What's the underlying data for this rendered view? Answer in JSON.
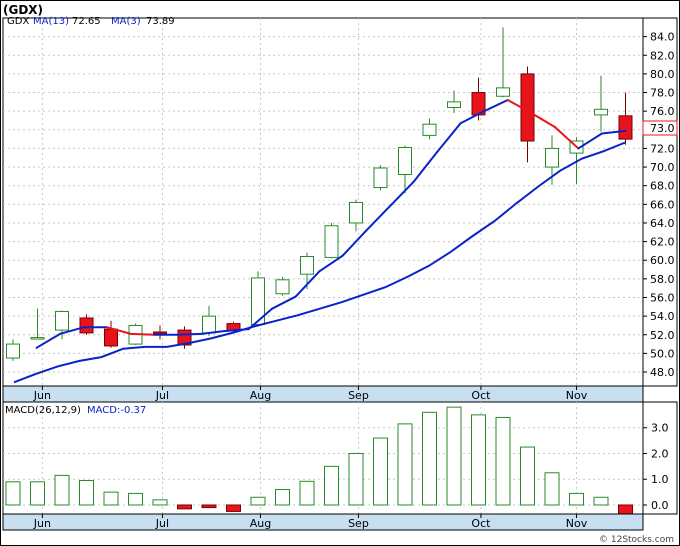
{
  "title": "(GDX)",
  "credit": "© 12Stocks.com",
  "colors": {
    "up": "#2a8a2a",
    "down": "#e8141b",
    "ma_slow": "#0b22c8",
    "ma_fast_up": "#0b22c8",
    "ma_fast_down": "#e8141b",
    "axis_band": "#c7dff0",
    "grid": "#c8c8c8"
  },
  "price_panel": {
    "legend": {
      "ticker": "GDX",
      "ma13_label": "MA(13)",
      "ma13_value": "72.65",
      "ma3_label": "MA(3)",
      "ma3_value": "73.89"
    },
    "y_ticks": [
      "84.0",
      "82.0",
      "80.0",
      "78.0",
      "76.0",
      "74.0",
      "72.0",
      "70.0",
      "68.0",
      "66.0",
      "64.0",
      "62.0",
      "60.0",
      "58.0",
      "56.0",
      "54.0",
      "52.0",
      "50.0",
      "48.0"
    ],
    "last_price_tag": "73.0"
  },
  "macd_panel": {
    "legend": {
      "label": "MACD(26,12,9)",
      "value_label": "MACD:-0.37"
    },
    "y_ticks": [
      "3.0",
      "2.0",
      "1.0",
      "0.0"
    ]
  },
  "x_labels": [
    "Jun",
    "Jul",
    "Aug",
    "Sep",
    "Oct",
    "Nov"
  ],
  "chart_data": [
    {
      "type": "candlestick",
      "title": "(GDX)",
      "ylim": [
        46.5,
        86.0
      ],
      "x_labels": [
        "Jun",
        "Jul",
        "Aug",
        "Sep",
        "Oct",
        "Nov"
      ],
      "month_start_index": [
        1.2,
        6.1,
        10.1,
        14.1,
        19.1,
        23.0
      ],
      "candles": [
        {
          "o": 49.5,
          "h": 51.5,
          "l": 49.2,
          "c": 51.0
        },
        {
          "o": 51.6,
          "h": 54.8,
          "l": 51.5,
          "c": 51.7
        },
        {
          "o": 52.5,
          "h": 54.6,
          "l": 51.5,
          "c": 54.5
        },
        {
          "o": 53.8,
          "h": 54.2,
          "l": 52.0,
          "c": 52.2
        },
        {
          "o": 52.6,
          "h": 53.5,
          "l": 50.6,
          "c": 50.8
        },
        {
          "o": 51.0,
          "h": 53.2,
          "l": 50.9,
          "c": 53.0
        },
        {
          "o": 52.3,
          "h": 53.0,
          "l": 51.5,
          "c": 52.2
        },
        {
          "o": 52.5,
          "h": 52.9,
          "l": 50.5,
          "c": 50.9
        },
        {
          "o": 52.2,
          "h": 55.1,
          "l": 51.9,
          "c": 54.0
        },
        {
          "o": 53.2,
          "h": 53.4,
          "l": 52.2,
          "c": 52.4
        },
        {
          "o": 53.1,
          "h": 58.8,
          "l": 52.9,
          "c": 58.1
        },
        {
          "o": 56.4,
          "h": 58.2,
          "l": 56.2,
          "c": 57.9
        },
        {
          "o": 58.5,
          "h": 60.8,
          "l": 56.9,
          "c": 60.4
        },
        {
          "o": 60.3,
          "h": 64.0,
          "l": 60.2,
          "c": 63.7
        },
        {
          "o": 64.0,
          "h": 66.5,
          "l": 63.1,
          "c": 66.2
        },
        {
          "o": 67.8,
          "h": 70.2,
          "l": 67.5,
          "c": 69.9
        },
        {
          "o": 69.2,
          "h": 72.3,
          "l": 67.2,
          "c": 72.1
        },
        {
          "o": 73.4,
          "h": 75.2,
          "l": 73.0,
          "c": 74.6
        },
        {
          "o": 76.4,
          "h": 78.2,
          "l": 75.8,
          "c": 77.0
        },
        {
          "o": 78.0,
          "h": 79.6,
          "l": 75.0,
          "c": 75.6
        },
        {
          "o": 77.6,
          "h": 85.0,
          "l": 77.5,
          "c": 78.5
        },
        {
          "o": 80.0,
          "h": 80.8,
          "l": 70.5,
          "c": 72.8
        },
        {
          "o": 70.0,
          "h": 73.4,
          "l": 68.1,
          "c": 72.0
        },
        {
          "o": 71.5,
          "h": 73.2,
          "l": 68.2,
          "c": 72.8
        },
        {
          "o": 75.6,
          "h": 79.8,
          "l": 73.8,
          "c": 76.2
        },
        {
          "o": 75.5,
          "h": 78.0,
          "l": 72.4,
          "c": 73.0
        }
      ],
      "ma13": [
        46.9,
        47.8,
        48.6,
        49.2,
        49.6,
        50.5,
        50.7,
        50.7,
        51.1,
        51.6,
        52.2,
        52.9,
        53.5,
        54.1,
        54.8,
        55.5,
        56.3,
        57.1,
        58.2,
        59.4,
        60.9,
        62.6,
        64.2,
        66.1,
        67.9,
        69.6,
        70.9,
        71.7,
        72.65
      ],
      "ma3": [
        null,
        50.6,
        52.1,
        52.8,
        52.8,
        52.1,
        52.0,
        52.0,
        52.1,
        52.4,
        52.6,
        54.8,
        56.1,
        58.8,
        60.5,
        63.2,
        65.8,
        68.4,
        71.6,
        74.7,
        76.0,
        77.2,
        75.8,
        74.3,
        72.0,
        73.6,
        73.89
      ],
      "series": [
        {
          "name": "MA(13)",
          "last_value": 72.65
        },
        {
          "name": "MA(3)",
          "last_value": 73.89
        }
      ]
    },
    {
      "type": "bar",
      "title": "MACD(26,12,9)",
      "ylim": [
        -0.35,
        4.0
      ],
      "x_labels": [
        "Jun",
        "Jul",
        "Aug",
        "Sep",
        "Oct",
        "Nov"
      ],
      "values": [
        0.9,
        0.9,
        1.15,
        0.95,
        0.5,
        0.45,
        0.2,
        -0.15,
        -0.1,
        -0.25,
        0.3,
        0.6,
        0.92,
        1.5,
        2.0,
        2.6,
        3.15,
        3.6,
        3.8,
        3.5,
        3.4,
        2.25,
        1.25,
        0.45,
        0.3,
        -0.37
      ]
    }
  ]
}
